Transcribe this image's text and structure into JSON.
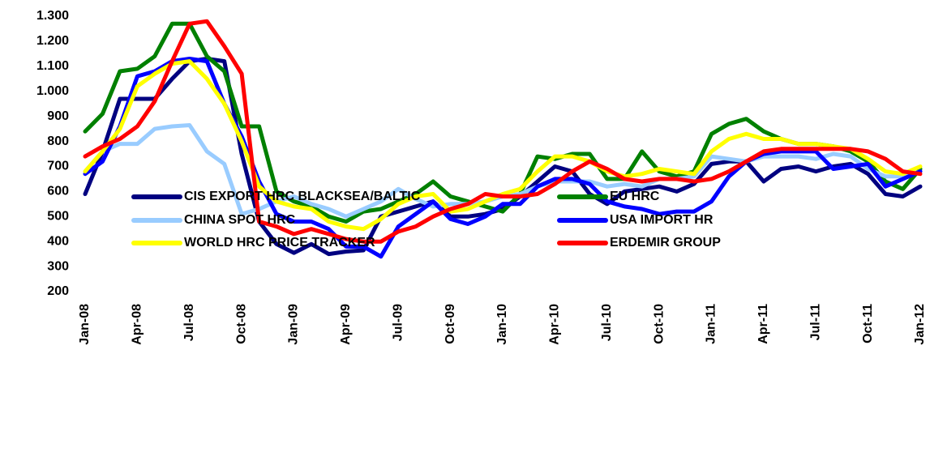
{
  "chart_data": {
    "type": "line",
    "categories": [
      "Jan-08",
      null,
      null,
      "Apr-08",
      null,
      null,
      "Jul-08",
      null,
      null,
      "Oct-08",
      null,
      null,
      "Jan-09",
      null,
      null,
      "Apr-09",
      null,
      null,
      "Jul-09",
      null,
      null,
      "Oct-09",
      null,
      null,
      "Jan-10",
      null,
      null,
      "Apr-10",
      null,
      null,
      "Jul-10",
      null,
      null,
      "Oct-10",
      null,
      null,
      "Jan-11",
      null,
      null,
      "Apr-11",
      null,
      null,
      "Jul-11",
      null,
      null,
      "Oct-11",
      null,
      null,
      "Jan-12"
    ],
    "ylim": [
      200,
      1300
    ],
    "yticks": [
      200,
      300,
      400,
      500,
      600,
      700,
      800,
      900,
      {
        "value": 1000,
        "label": "1.000"
      },
      {
        "value": 1100,
        "label": "1.100"
      },
      {
        "value": 1200,
        "label": "1.200"
      },
      {
        "value": 1300,
        "label": "1.300"
      }
    ],
    "grid": false,
    "legend": "bottom",
    "series": [
      {
        "name": "CIS EXPORT HRC BLACKSEA/BALTIC",
        "color": "#000080",
        "values": [
          590,
          760,
          970,
          970,
          970,
          1050,
          1120,
          1130,
          1120,
          750,
          480,
          390,
          355,
          390,
          350,
          360,
          365,
          500,
          520,
          540,
          560,
          500,
          500,
          510,
          530,
          580,
          640,
          700,
          680,
          590,
          550,
          600,
          610,
          620,
          600,
          630,
          710,
          720,
          720,
          640,
          690,
          700,
          680,
          700,
          710,
          670,
          590,
          580,
          620
        ]
      },
      {
        "name": "EU HRC",
        "color": "#008000",
        "values": [
          840,
          910,
          1080,
          1090,
          1140,
          1270,
          1270,
          1140,
          1080,
          860,
          860,
          600,
          560,
          540,
          500,
          480,
          520,
          530,
          560,
          590,
          640,
          580,
          560,
          540,
          520,
          590,
          740,
          730,
          750,
          750,
          650,
          650,
          760,
          680,
          660,
          680,
          830,
          870,
          890,
          840,
          810,
          790,
          790,
          780,
          760,
          720,
          640,
          610,
          690
        ]
      },
      {
        "name": "CHINA SPOT HRC",
        "color": "#99ccff",
        "values": [
          680,
          760,
          790,
          790,
          850,
          860,
          865,
          760,
          710,
          510,
          530,
          560,
          580,
          550,
          530,
          500,
          530,
          560,
          610,
          570,
          540,
          550,
          550,
          560,
          580,
          590,
          620,
          640,
          640,
          640,
          620,
          630,
          620,
          650,
          650,
          660,
          740,
          730,
          720,
          740,
          740,
          740,
          730,
          750,
          740,
          690,
          660,
          660,
          680
        ]
      },
      {
        "name": "USA IMPORT HR",
        "color": "#0000ff",
        "values": [
          670,
          720,
          860,
          1060,
          1080,
          1120,
          1130,
          1120,
          950,
          820,
          640,
          510,
          480,
          480,
          450,
          380,
          380,
          340,
          460,
          510,
          560,
          490,
          470,
          500,
          550,
          550,
          620,
          650,
          650,
          630,
          560,
          540,
          530,
          510,
          520,
          520,
          560,
          660,
          720,
          750,
          760,
          760,
          760,
          690,
          700,
          710,
          620,
          650,
          680
        ]
      },
      {
        "name": "WORLD HRC PRICE TRACKER",
        "color": "#ffff00",
        "values": [
          680,
          760,
          850,
          1020,
          1070,
          1110,
          1120,
          1050,
          950,
          800,
          620,
          560,
          540,
          530,
          480,
          460,
          450,
          490,
          550,
          580,
          590,
          520,
          530,
          560,
          590,
          610,
          680,
          740,
          740,
          720,
          680,
          660,
          670,
          690,
          680,
          670,
          760,
          810,
          830,
          810,
          810,
          790,
          790,
          780,
          770,
          730,
          680,
          670,
          700
        ]
      },
      {
        "name": "ERDEMIR GROUP",
        "color": "#ff0000",
        "values": [
          740,
          780,
          810,
          860,
          960,
          1120,
          1270,
          1280,
          1180,
          1070,
          480,
          460,
          430,
          450,
          430,
          410,
          400,
          400,
          440,
          460,
          500,
          530,
          550,
          590,
          580,
          580,
          590,
          630,
          680,
          720,
          690,
          650,
          640,
          650,
          650,
          640,
          650,
          680,
          720,
          760,
          770,
          770,
          770,
          770,
          770,
          760,
          730,
          680,
          670
        ]
      }
    ]
  }
}
